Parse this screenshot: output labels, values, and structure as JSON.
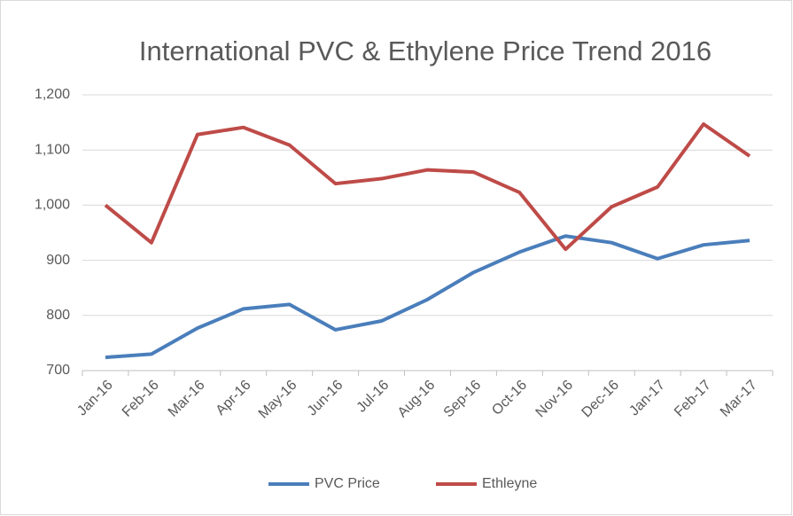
{
  "chart_data": {
    "type": "line",
    "title": "International PVC & Ethylene Price Trend 2016",
    "categories": [
      "Jan-16",
      "Feb-16",
      "Mar-16",
      "Apr-16",
      "May-16",
      "Jun-16",
      "Jul-16",
      "Aug-16",
      "Sep-16",
      "Oct-16",
      "Nov-16",
      "Dec-16",
      "Jan-17",
      "Feb-17",
      "Mar-17"
    ],
    "series": [
      {
        "name": "PVC Price",
        "color": "#4a7ebb",
        "values": [
          724,
          730,
          777,
          812,
          820,
          774,
          790,
          829,
          878,
          915,
          944,
          932,
          903,
          928,
          936
        ]
      },
      {
        "name": "Ethleyne",
        "color": "#be4b48",
        "values": [
          1000,
          932,
          1128,
          1141,
          1109,
          1039,
          1048,
          1064,
          1060,
          1023,
          920,
          997,
          1033,
          1147,
          1089
        ]
      }
    ],
    "ylim": [
      700,
      1200
    ],
    "yticks": [
      700,
      800,
      900,
      {
        "value": 1000,
        "label": "1,000"
      },
      {
        "value": 1100,
        "label": "1,100"
      },
      {
        "value": 1200,
        "label": "1,200"
      }
    ],
    "grid": true,
    "legend": "bottom"
  }
}
